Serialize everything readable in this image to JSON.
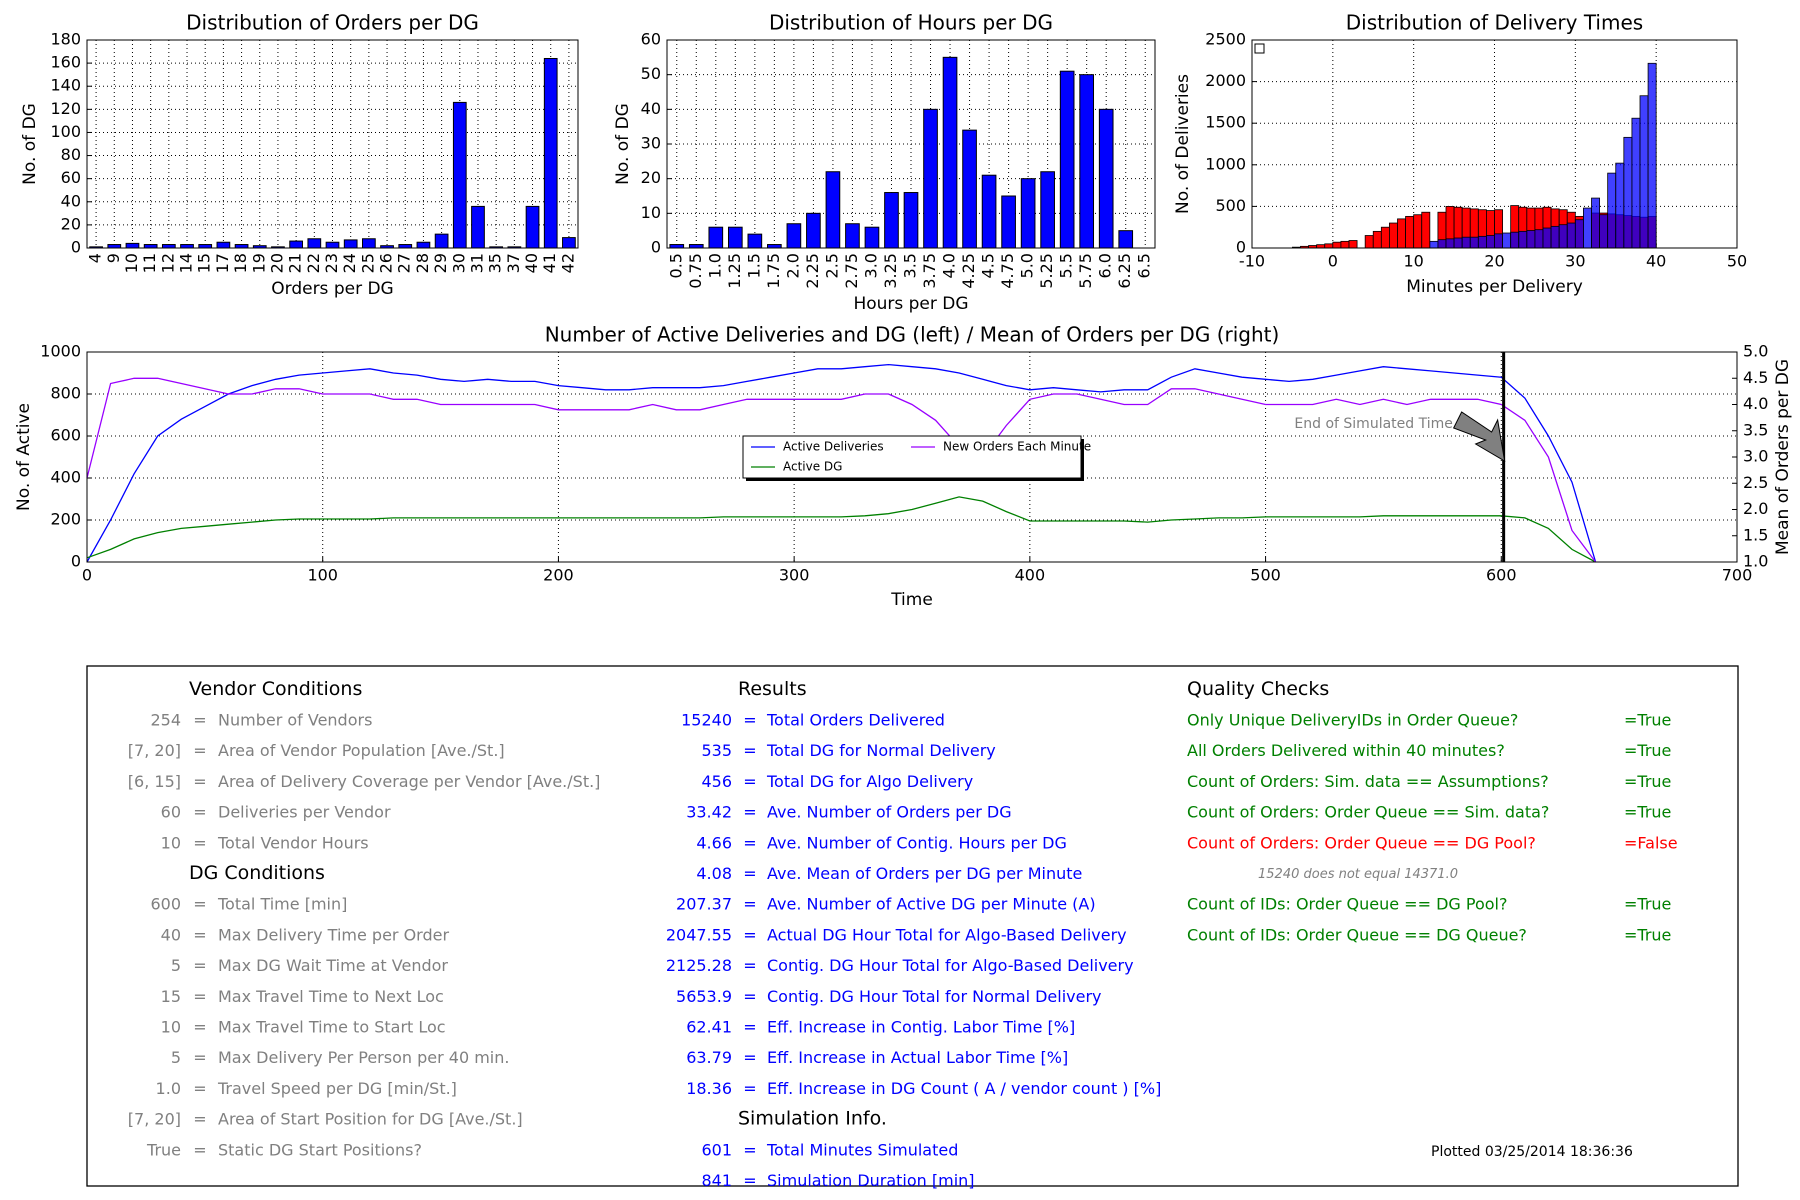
{
  "chart_data": [
    {
      "type": "bar",
      "title": "Distribution of Orders per DG",
      "x_label": "Orders per DG",
      "y_label": "No. of DG",
      "categories": [
        "4",
        "9",
        "10",
        "11",
        "12",
        "14",
        "15",
        "17",
        "18",
        "19",
        "20",
        "21",
        "22",
        "23",
        "24",
        "25",
        "26",
        "27",
        "28",
        "29",
        "30",
        "31",
        "35",
        "37",
        "40",
        "41",
        "42"
      ],
      "values": [
        1,
        3,
        4,
        3,
        3,
        3,
        3,
        5,
        3,
        2,
        1,
        6,
        8,
        5,
        7,
        8,
        2,
        3,
        5,
        12,
        126,
        36,
        1,
        1,
        36,
        164,
        9
      ],
      "color": "#0000ff",
      "ylim": [
        0,
        180
      ],
      "yticks": [
        0,
        20,
        40,
        60,
        80,
        100,
        120,
        140,
        160,
        180
      ],
      "grid": true
    },
    {
      "type": "bar",
      "title": "Distribution of Hours per DG",
      "x_label": "Hours per DG",
      "y_label": "No. of DG",
      "categories": [
        "0.5",
        "0.75",
        "1.0",
        "1.25",
        "1.5",
        "1.75",
        "2.0",
        "2.25",
        "2.5",
        "2.75",
        "3.0",
        "3.25",
        "3.5",
        "3.75",
        "4.0",
        "4.25",
        "4.5",
        "4.75",
        "5.0",
        "5.25",
        "5.5",
        "5.75",
        "6.0",
        "6.25",
        "6.5"
      ],
      "values": [
        1,
        1,
        6,
        6,
        4,
        1,
        7,
        10,
        22,
        7,
        6,
        16,
        16,
        40,
        55,
        34,
        21,
        15,
        20,
        22,
        51,
        50,
        40,
        5,
        0
      ],
      "color": "#0000ff",
      "ylim": [
        0,
        60
      ],
      "yticks": [
        0,
        10,
        20,
        30,
        40,
        50,
        60
      ],
      "grid": true
    },
    {
      "type": "histogram",
      "title": "Distribution of Delivery Times",
      "x_label": "Minutes per Delivery",
      "y_label": "No. of Deliveries",
      "bins": [
        -5,
        -4,
        -3,
        -2,
        -1,
        0,
        1,
        2,
        3,
        4,
        5,
        6,
        7,
        8,
        9,
        10,
        11,
        12,
        13,
        14,
        15,
        16,
        17,
        18,
        19,
        20,
        21,
        22,
        23,
        24,
        25,
        26,
        27,
        28,
        29,
        30,
        31,
        32,
        33,
        34,
        35,
        36,
        37,
        38,
        39,
        40
      ],
      "series": [
        {
          "color": "#ff0000",
          "values": [
            10,
            20,
            30,
            40,
            50,
            70,
            80,
            90,
            0,
            150,
            200,
            250,
            300,
            350,
            380,
            400,
            430,
            0,
            430,
            500,
            490,
            480,
            470,
            460,
            450,
            460,
            0,
            510,
            490,
            480,
            480,
            490,
            470,
            460,
            430,
            380,
            0,
            420,
            420,
            410,
            400,
            390,
            380,
            370,
            380
          ]
        },
        {
          "color": "#0000ff",
          "values": [
            0,
            0,
            0,
            0,
            0,
            0,
            0,
            0,
            0,
            0,
            0,
            0,
            0,
            0,
            0,
            0,
            0,
            80,
            100,
            110,
            120,
            130,
            130,
            140,
            150,
            170,
            180,
            190,
            200,
            210,
            220,
            240,
            260,
            280,
            300,
            340,
            480,
            600,
            400,
            900,
            1020,
            1330,
            1560,
            1830,
            2220
          ]
        }
      ],
      "xlim": [
        -10,
        50
      ],
      "xticks": [
        -10,
        0,
        10,
        20,
        30,
        40,
        50
      ],
      "ylim": [
        0,
        2500
      ],
      "yticks": [
        0,
        500,
        1000,
        1500,
        2000,
        2500
      ],
      "grid": true
    },
    {
      "type": "line",
      "title": "Number of Active Deliveries and DG (left)  /  Mean of Orders per DG (right)",
      "x_label": "Time",
      "y_label": "No. of Active",
      "y2_label": "Mean of Orders per DG",
      "x": [
        0,
        10,
        20,
        30,
        40,
        50,
        60,
        70,
        80,
        90,
        100,
        110,
        120,
        130,
        140,
        150,
        160,
        170,
        180,
        190,
        200,
        210,
        220,
        230,
        240,
        250,
        260,
        270,
        280,
        290,
        300,
        310,
        320,
        330,
        340,
        350,
        360,
        370,
        380,
        390,
        400,
        410,
        420,
        430,
        440,
        450,
        460,
        470,
        480,
        490,
        500,
        510,
        520,
        530,
        540,
        550,
        560,
        570,
        580,
        590,
        600,
        610,
        620,
        630,
        640
      ],
      "series": [
        {
          "name": "Active Deliveries",
          "color": "#0000ff",
          "values": [
            0,
            200,
            420,
            600,
            680,
            740,
            800,
            840,
            870,
            890,
            900,
            910,
            920,
            900,
            890,
            870,
            860,
            870,
            860,
            860,
            840,
            830,
            820,
            820,
            830,
            830,
            830,
            840,
            860,
            880,
            900,
            920,
            920,
            930,
            940,
            930,
            920,
            900,
            870,
            840,
            820,
            830,
            820,
            810,
            820,
            820,
            880,
            920,
            900,
            880,
            870,
            860,
            870,
            890,
            910,
            930,
            920,
            910,
            900,
            890,
            880,
            780,
            600,
            380,
            0
          ]
        },
        {
          "name": "Active DG",
          "color": "#008000",
          "values": [
            20,
            60,
            110,
            140,
            160,
            170,
            180,
            190,
            200,
            205,
            205,
            205,
            205,
            210,
            210,
            210,
            210,
            210,
            210,
            210,
            210,
            210,
            210,
            210,
            210,
            210,
            210,
            215,
            215,
            215,
            215,
            215,
            215,
            220,
            230,
            250,
            280,
            310,
            290,
            240,
            195,
            195,
            195,
            195,
            195,
            190,
            200,
            205,
            210,
            210,
            215,
            215,
            215,
            215,
            215,
            220,
            220,
            220,
            220,
            220,
            220,
            210,
            160,
            60,
            0
          ]
        },
        {
          "name": "New Orders Each Minute",
          "color": "#9900ff",
          "axis": "y2",
          "values": [
            2.6,
            4.4,
            4.5,
            4.5,
            4.4,
            4.3,
            4.2,
            4.2,
            4.3,
            4.3,
            4.2,
            4.2,
            4.2,
            4.1,
            4.1,
            4.0,
            4.0,
            4.0,
            4.0,
            4.0,
            3.9,
            3.9,
            3.9,
            3.9,
            4.0,
            3.9,
            3.9,
            4.0,
            4.1,
            4.1,
            4.1,
            4.1,
            4.1,
            4.2,
            4.2,
            4.0,
            3.7,
            3.2,
            3.0,
            3.6,
            4.1,
            4.2,
            4.2,
            4.1,
            4.0,
            4.0,
            4.3,
            4.3,
            4.2,
            4.1,
            4.0,
            4.0,
            4.0,
            4.1,
            4.0,
            4.1,
            4.0,
            4.1,
            4.1,
            4.1,
            4.0,
            3.7,
            3.0,
            1.6,
            1.0
          ]
        }
      ],
      "xlim": [
        0,
        700
      ],
      "xticks": [
        0,
        100,
        200,
        300,
        400,
        500,
        600,
        700
      ],
      "ylim": [
        0,
        1000
      ],
      "yticks": [
        0,
        200,
        400,
        600,
        800,
        1000
      ],
      "y2lim": [
        1,
        5
      ],
      "y2ticks": [
        {
          "value": 1,
          "label": "1.0"
        },
        {
          "value": 1.5,
          "label": "1.5"
        },
        {
          "value": 2,
          "label": "2.0"
        },
        {
          "value": 2.5,
          "label": "2.5"
        },
        {
          "value": 3,
          "label": "3.0"
        },
        {
          "value": 3.5,
          "label": "3.5"
        },
        {
          "value": 4,
          "label": "4.0"
        },
        {
          "value": 4.5,
          "label": "4.5"
        },
        {
          "value": 5,
          "label": "5.0"
        }
      ],
      "grid": true,
      "legend": "center",
      "vline": 601,
      "annotation": "End of Simulated Time"
    }
  ],
  "panel": {
    "separator": "=",
    "vendor": {
      "title": "Vendor Conditions",
      "color": "#808080",
      "rows": [
        [
          "254",
          "Number of Vendors"
        ],
        [
          "[7, 20]",
          "Area of Vendor Population [Ave./St.]"
        ],
        [
          "[6, 15]",
          "Area of Delivery Coverage per Vendor [Ave./St.]"
        ],
        [
          "60",
          "Deliveries per Vendor"
        ],
        [
          "10",
          "Total Vendor Hours"
        ]
      ]
    },
    "dg": {
      "title": "DG Conditions",
      "color": "#808080",
      "rows": [
        [
          "600",
          "Total Time [min]"
        ],
        [
          "40",
          "Max Delivery Time per Order"
        ],
        [
          "5",
          "Max DG Wait Time at Vendor"
        ],
        [
          "15",
          "Max Travel Time to Next Loc"
        ],
        [
          "10",
          "Max Travel Time to Start Loc"
        ],
        [
          "5",
          "Max Delivery Per Person per 40 min."
        ],
        [
          "1.0",
          "Travel Speed per DG [min/St.]"
        ],
        [
          "[7, 20]",
          "Area of Start Position for DG [Ave./St.]"
        ],
        [
          "True",
          "Static DG Start Positions?"
        ]
      ]
    },
    "results": {
      "title": "Results",
      "color": "#0000ff",
      "rows": [
        [
          "15240",
          "Total Orders Delivered"
        ],
        [
          "535",
          "Total DG for Normal Delivery"
        ],
        [
          "456",
          "Total DG for Algo Delivery"
        ],
        [
          "33.42",
          "Ave. Number of Orders per DG"
        ],
        [
          "4.66",
          "Ave. Number of Contig. Hours per DG"
        ],
        [
          "4.08",
          "Ave. Mean of Orders per DG per Minute"
        ],
        [
          "207.37",
          "Ave. Number of Active DG per Minute (A)"
        ],
        [
          "2047.55",
          "Actual DG Hour Total for Algo-Based Delivery"
        ],
        [
          "2125.28",
          "Contig. DG Hour Total for Algo-Based Delivery"
        ],
        [
          "5653.9",
          "Contig. DG Hour Total for Normal Delivery"
        ],
        [
          "62.41",
          "Eff. Increase in Contig. Labor Time [%]"
        ],
        [
          "63.79",
          "Eff. Increase in Actual Labor Time [%]"
        ],
        [
          "18.36",
          "Eff. Increase in DG Count ( A / vendor count ) [%]"
        ]
      ]
    },
    "simulation": {
      "title": "Simulation Info.",
      "color": "#0000ff",
      "rows": [
        [
          "601",
          "Total Minutes Simulated"
        ],
        [
          "841",
          "Simulation Duration [min]"
        ]
      ]
    },
    "quality": {
      "title": "Quality Checks",
      "rows": [
        {
          "label": "Only Unique DeliveryIDs in Order Queue?",
          "result": "=True",
          "color": "#008000"
        },
        {
          "label": "All Orders Delivered within 40 minutes?",
          "result": "=True",
          "color": "#008000"
        },
        {
          "label": "Count of Orders:  Sim. data == Assumptions?",
          "result": "=True",
          "color": "#008000"
        },
        {
          "label": "Count of Orders:  Order Queue == Sim. data?",
          "result": "=True",
          "color": "#008000"
        },
        {
          "label": "Count of Orders:  Order Queue == DG Pool?",
          "result": "=False",
          "color": "#ff0000"
        },
        {
          "label": "Count of IDs:  Order Queue == DG Pool?",
          "result": "=True",
          "color": "#008000"
        },
        {
          "label": "Count of IDs:  Order Queue == DG Queue?",
          "result": "=True",
          "color": "#008000"
        }
      ],
      "note": "15240  does not equal  14371.0"
    },
    "plotted": "Plotted 03/25/2014  18:36:36"
  }
}
